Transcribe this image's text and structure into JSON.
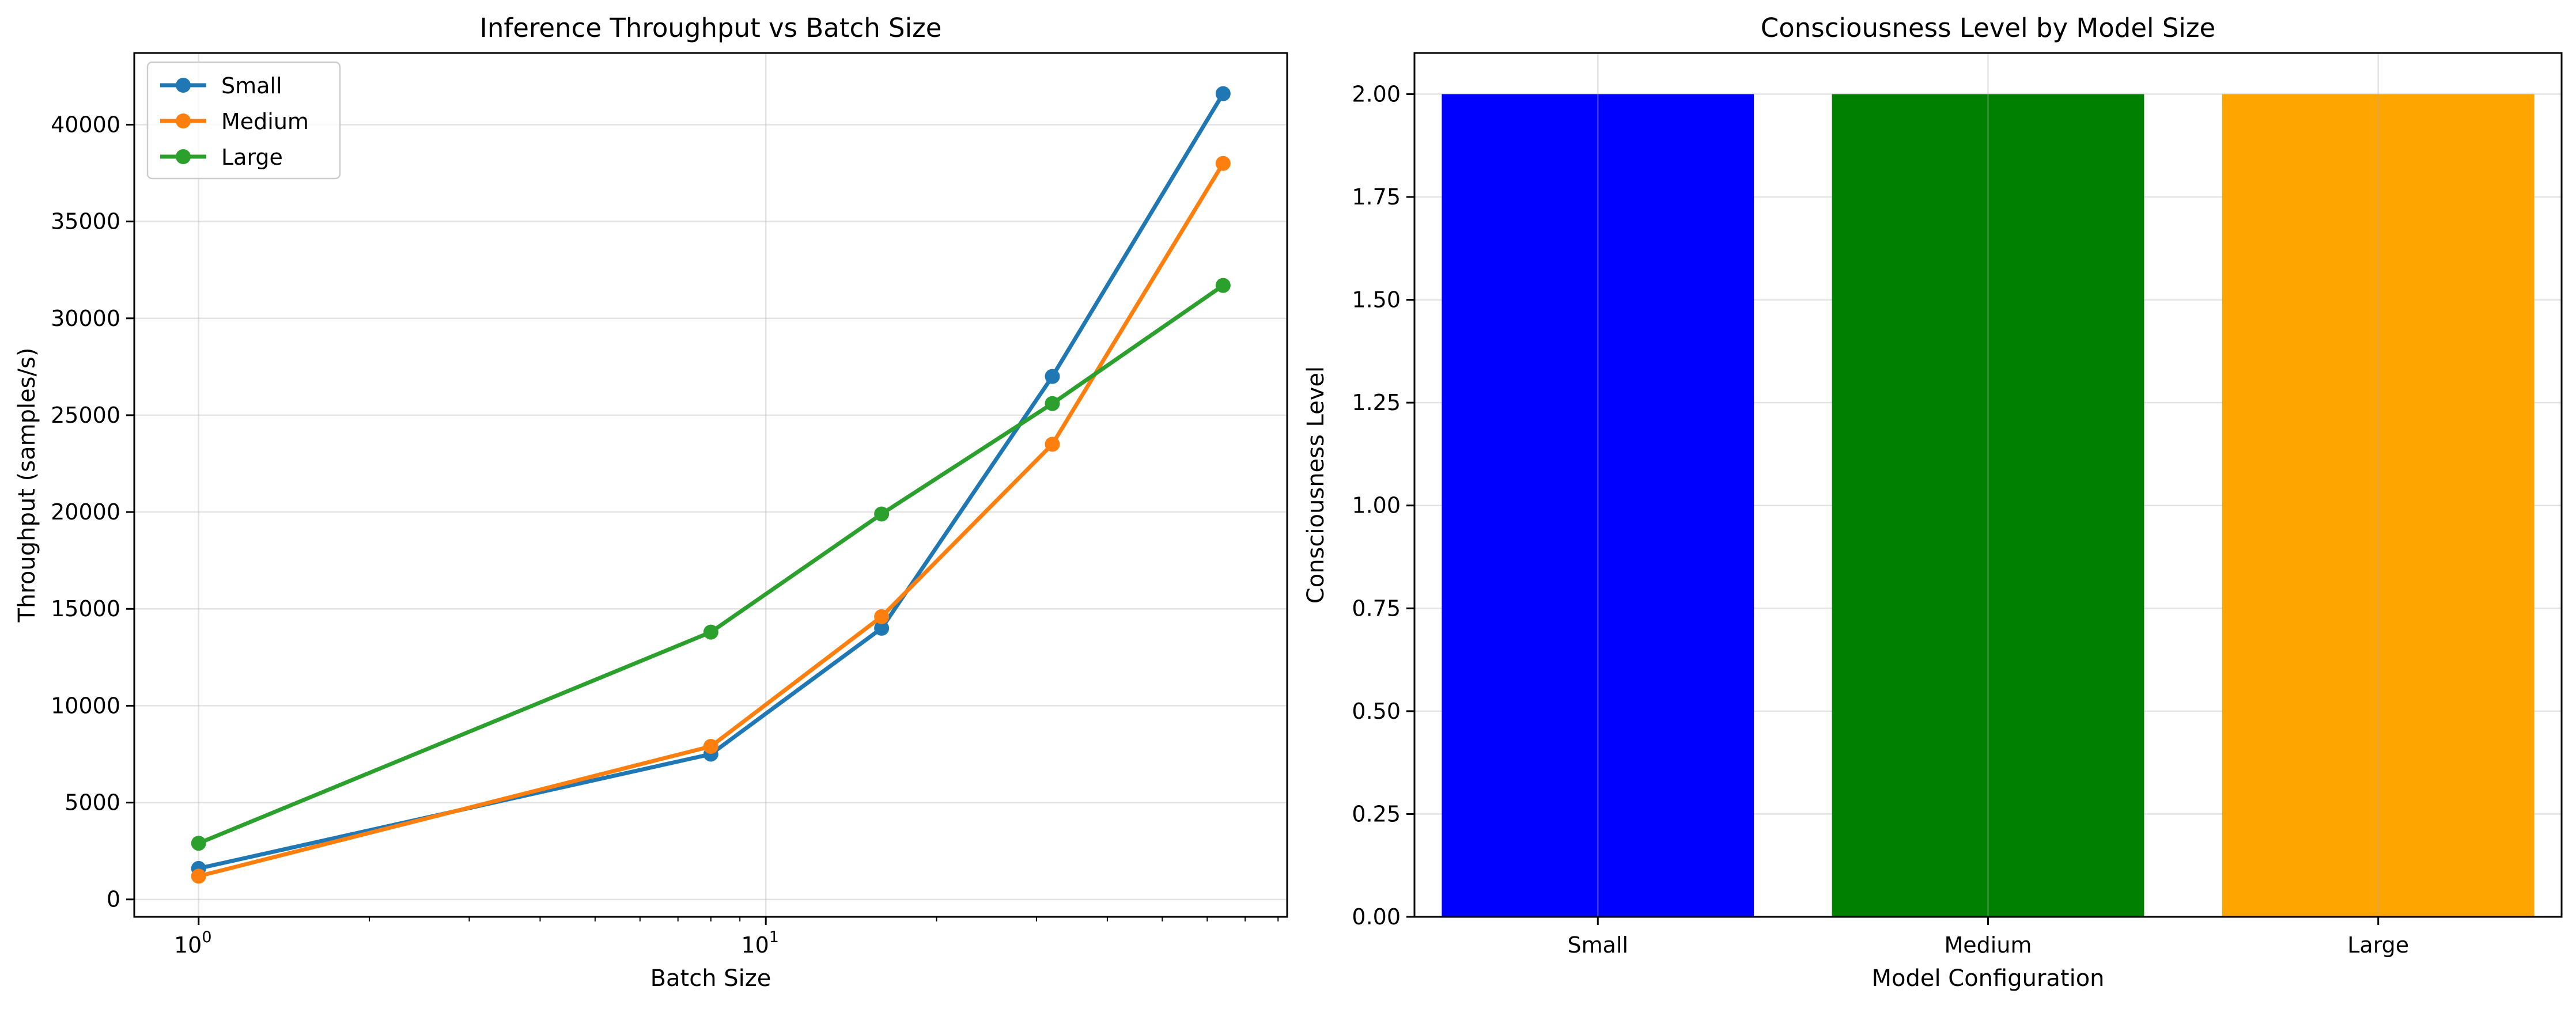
{
  "chart_data": [
    {
      "type": "line",
      "title": "Inference Throughput vs Batch Size",
      "xlabel": "Batch Size",
      "ylabel": "Throughput (samples/s)",
      "xscale": "log",
      "xlim": [
        0.77,
        83
      ],
      "ylim": [
        -900,
        43700
      ],
      "x": [
        1,
        8,
        16,
        32,
        64
      ],
      "x_tick_labels": [
        "10^0",
        "10^1"
      ],
      "y_ticks": [
        0,
        5000,
        10000,
        15000,
        20000,
        25000,
        30000,
        35000,
        40000
      ],
      "grid": true,
      "legend_position": "top-left",
      "series": [
        {
          "name": "Small",
          "color": "#1f77b4",
          "values": [
            1600,
            7500,
            14000,
            27000,
            41600
          ]
        },
        {
          "name": "Medium",
          "color": "#ff7f0e",
          "values": [
            1200,
            7900,
            14600,
            23500,
            38000
          ]
        },
        {
          "name": "Large",
          "color": "#2ca02c",
          "values": [
            2900,
            13800,
            19900,
            25600,
            31700
          ]
        }
      ]
    },
    {
      "type": "bar",
      "title": "Consciousness Level by Model Size",
      "xlabel": "Model Configuration",
      "ylabel": "Consciousness Level",
      "categories": [
        "Small",
        "Medium",
        "Large"
      ],
      "values": [
        2,
        2,
        2
      ],
      "colors": [
        "#0000ff",
        "#008000",
        "#ffa500"
      ],
      "ylim": [
        0,
        2.1
      ],
      "y_ticks": [
        "0.00",
        "0.25",
        "0.50",
        "0.75",
        "1.00",
        "1.25",
        "1.50",
        "1.75",
        "2.00"
      ],
      "grid": true
    }
  ]
}
